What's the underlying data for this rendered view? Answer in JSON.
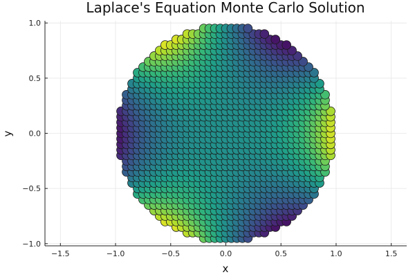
{
  "chart_data": {
    "type": "scatter",
    "title": "Laplace's Equation Monte Carlo Solution",
    "xlabel": "x",
    "ylabel": "y",
    "xlim": [
      -1.64,
      1.64
    ],
    "ylim": [
      -1.02,
      1.02
    ],
    "xticks": [
      -1.5,
      -1.0,
      -0.5,
      0.0,
      0.5,
      1.0,
      1.5
    ],
    "xtick_labels": [
      "−1.5",
      "−1.0",
      "−0.5",
      "0.0",
      "0.5",
      "1.0",
      "1.5"
    ],
    "yticks": [
      -1.0,
      -0.5,
      0.0,
      0.5,
      1.0
    ],
    "ytick_labels": [
      "−1.0",
      "−0.5",
      "0.0",
      "0.5",
      "1.0"
    ],
    "grid": true,
    "legend": "none",
    "colormap": "viridis",
    "domain": "unit disk, r ≤ 0.98",
    "grid_spacing": 0.05,
    "value_range": [
      -1,
      1
    ],
    "boundary_condition": "u(cosθ, sinθ) = cos(3θ)",
    "colors": {
      "marker_edge": "#1a1a1a",
      "grid": "#e6e6e6",
      "axis": "#222222"
    }
  }
}
